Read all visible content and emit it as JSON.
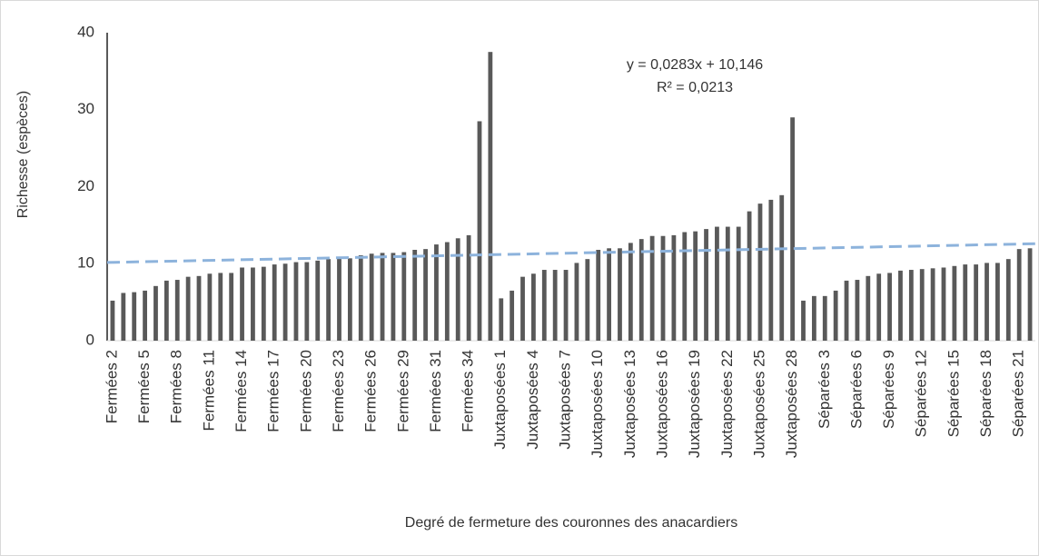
{
  "chart_data": {
    "type": "bar",
    "y_label": "Richesse (espèces)",
    "x_label": "Degré de fermeture des couronnes des anacardiers",
    "categories": [
      "Fermées 2",
      null,
      null,
      "Fermées 5",
      null,
      null,
      "Fermées 8",
      null,
      null,
      "Fermées 11",
      null,
      null,
      "Fermées 14",
      null,
      null,
      "Fermées 17",
      null,
      null,
      "Fermées 20",
      null,
      null,
      "Fermées 23",
      null,
      null,
      "Fermées 26",
      null,
      null,
      "Fermées 29",
      null,
      null,
      "Fermées 31",
      null,
      null,
      "Fermées 34",
      null,
      null,
      "Juxtaposées 1",
      null,
      null,
      "Juxtaposées 4",
      null,
      null,
      "Juxtaposées 7",
      null,
      null,
      "Juxtaposées 10",
      null,
      null,
      "Juxtaposées 13",
      null,
      null,
      "Juxtaposées 16",
      null,
      null,
      "Juxtaposées 19",
      null,
      null,
      "Juxtaposées 22",
      null,
      null,
      "Juxtaposées 25",
      null,
      null,
      "Juxtaposées 28",
      null,
      null,
      "Séparées 3",
      null,
      null,
      "Séparées 6",
      null,
      null,
      "Séparées 9",
      null,
      null,
      "Séparées 12",
      null,
      null,
      "Séparées 15",
      null,
      null,
      "Séparées 18",
      null,
      null,
      "Séparées 21",
      null
    ],
    "values": [
      5.2,
      6.2,
      6.3,
      6.5,
      7.1,
      7.8,
      7.9,
      8.3,
      8.4,
      8.7,
      8.8,
      8.8,
      9.5,
      9.5,
      9.6,
      9.9,
      10,
      10.2,
      10.2,
      10.4,
      10.6,
      10.7,
      10.7,
      11.1,
      11.3,
      11.4,
      11.4,
      11.5,
      11.8,
      11.9,
      12.5,
      12.8,
      13.3,
      13.7,
      28.5,
      37.5,
      5.5,
      6.5,
      8.3,
      8.7,
      9.2,
      9.2,
      9.2,
      10.1,
      10.6,
      11.8,
      12.0,
      12.0,
      12.7,
      13.2,
      13.6,
      13.6,
      13.7,
      14.1,
      14.2,
      14.5,
      14.8,
      14.8,
      14.8,
      16.8,
      17.8,
      18.3,
      18.9,
      29,
      5.2,
      5.8,
      5.8,
      6.5,
      7.8,
      7.9,
      8.4,
      8.7,
      8.8,
      9.1,
      9.2,
      9.3,
      9.4,
      9.5,
      9.7,
      9.9,
      9.9,
      10.1,
      10.1,
      10.6,
      11.9,
      12.0
    ],
    "color": "#595959",
    "ylim": [
      0,
      40
    ],
    "yticks": [
      0,
      10,
      20,
      30,
      40
    ],
    "grid": false,
    "trendline": {
      "slope": 0.0283,
      "intercept": 10.146,
      "equation": "y = 0,0283x + 10,146",
      "r2": "R² = 0,0213",
      "color": "#8db3dc"
    }
  }
}
